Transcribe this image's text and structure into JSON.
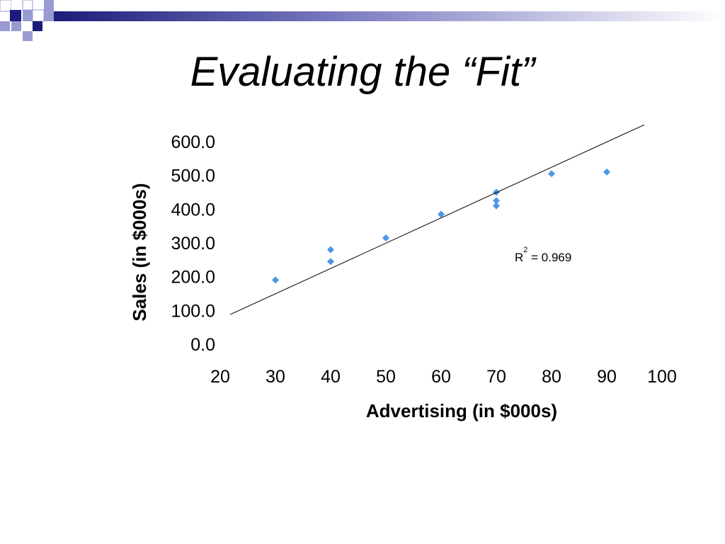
{
  "slide": {
    "title": "Evaluating the “Fit”"
  },
  "colors": {
    "navy": "#1c1c7a",
    "lavender": "#9a9ad2",
    "marker": "#4a96e8",
    "line": "#000000"
  },
  "chart_data": {
    "type": "scatter",
    "xlabel": "Advertising (in $000s)",
    "ylabel": "Sales (in $000s)",
    "xlim": [
      20,
      100
    ],
    "ylim": [
      0,
      600
    ],
    "x_ticks": [
      "20",
      "30",
      "40",
      "50",
      "60",
      "70",
      "80",
      "90",
      "100"
    ],
    "y_ticks": [
      "0.0",
      "100.0",
      "200.0",
      "300.0",
      "400.0",
      "500.0",
      "600.0"
    ],
    "points": [
      {
        "x": 30,
        "y": 190
      },
      {
        "x": 40,
        "y": 245
      },
      {
        "x": 40,
        "y": 280
      },
      {
        "x": 50,
        "y": 315
      },
      {
        "x": 60,
        "y": 385
      },
      {
        "x": 70,
        "y": 410
      },
      {
        "x": 70,
        "y": 425
      },
      {
        "x": 70,
        "y": 450
      },
      {
        "x": 80,
        "y": 505
      },
      {
        "x": 90,
        "y": 510
      }
    ],
    "trendline": {
      "x": [
        20,
        95
      ],
      "y": [
        88,
        650
      ]
    },
    "r2_label": {
      "prefix": "R",
      "superscript": "2",
      "suffix": " = 0.969"
    },
    "grid": false,
    "legend": "none"
  }
}
